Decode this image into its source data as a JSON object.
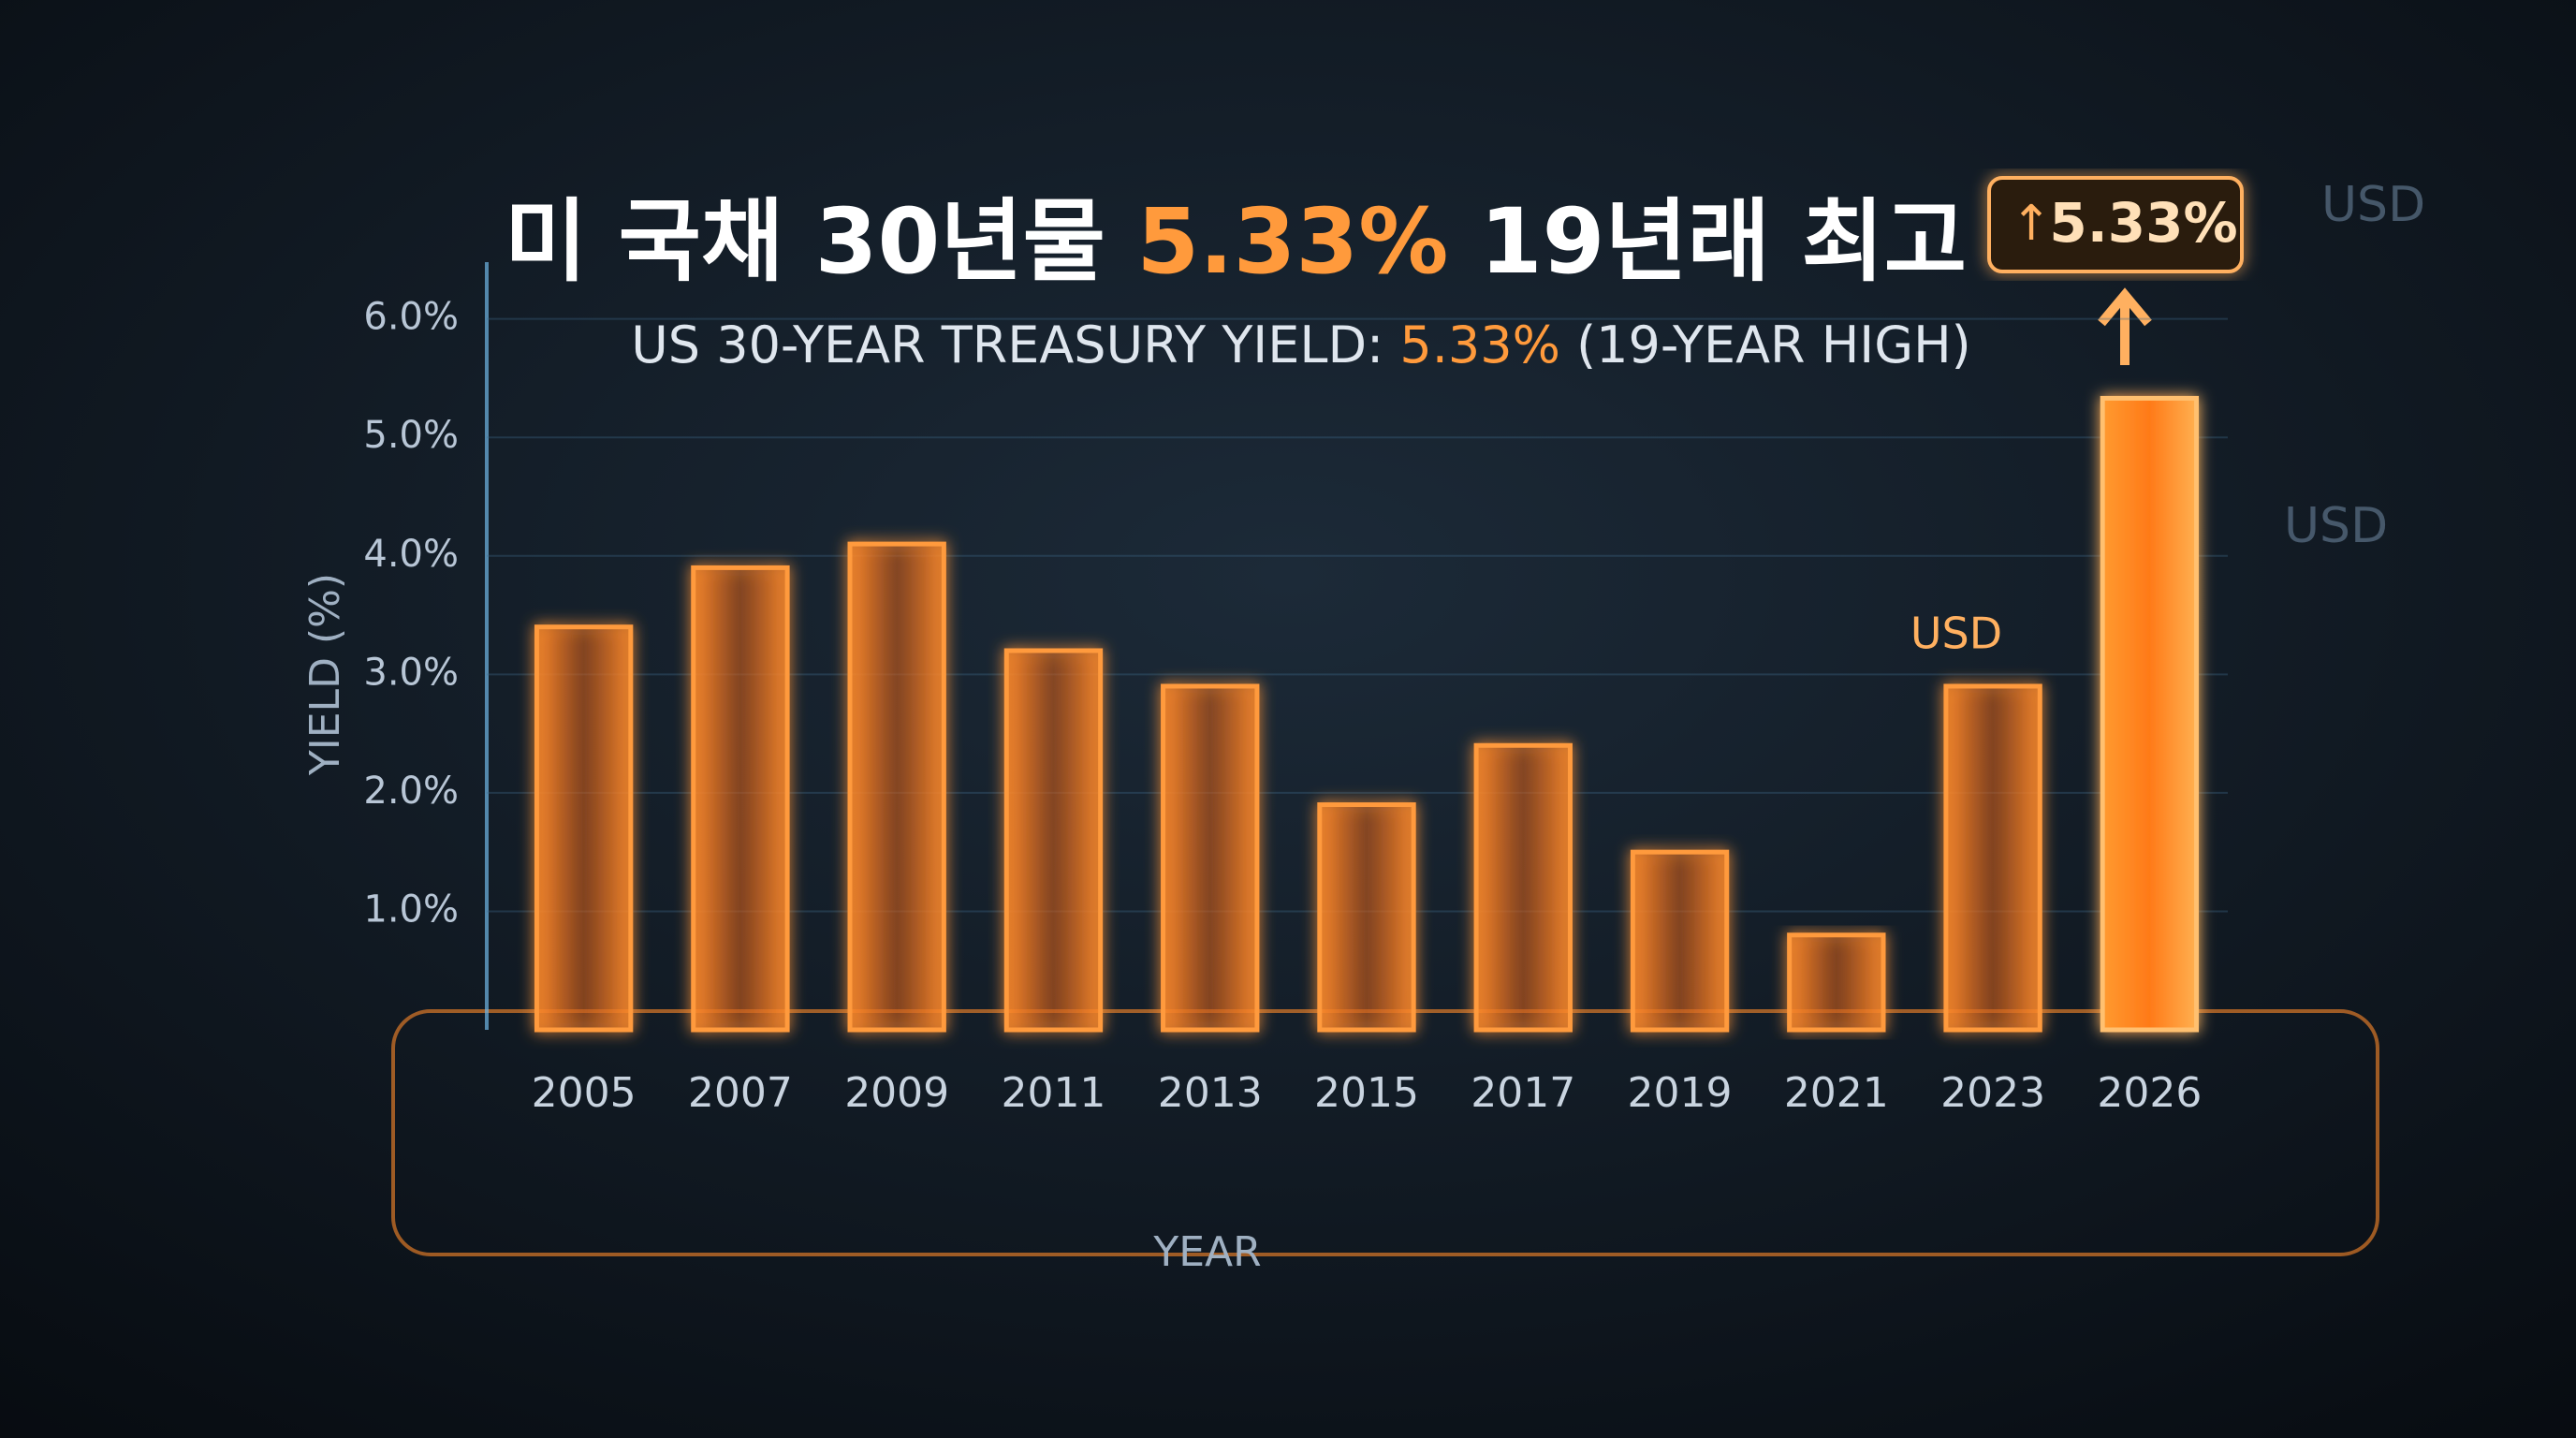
{
  "chart_data": {
    "type": "bar",
    "title": [
      "미 국채 30년물 ",
      "5.33%",
      " 19년래 최고"
    ],
    "subtitle": [
      "US 30-YEAR TREASURY YIELD: ",
      "5.33%",
      " (19-YEAR HIGH)"
    ],
    "y_label": "YIELD (%)",
    "x_label": "YEAR",
    "categories": [
      "2005",
      "2007",
      "2009",
      "2011",
      "2013",
      "2015",
      "2017",
      "2019",
      "2021",
      "2023",
      "2026"
    ],
    "values": [
      3.4,
      3.9,
      4.1,
      3.2,
      2.9,
      1.9,
      2.4,
      1.5,
      0.8,
      2.9,
      5.33
    ],
    "color": "#ff8a2a",
    "ylim": [
      0,
      6.4
    ],
    "yticks": [
      {
        "value": 1,
        "label": "1.0%"
      },
      {
        "value": 2,
        "label": "2.0%"
      },
      {
        "value": 3,
        "label": "3.0%"
      },
      {
        "value": 4,
        "label": "4.0%"
      },
      {
        "value": 5,
        "label": "5.0%"
      },
      {
        "value": 6,
        "label": "6.0%"
      }
    ],
    "grid": true,
    "annotation": "5.33%",
    "decor_labels": [
      "USD",
      "USD",
      "USD"
    ]
  }
}
